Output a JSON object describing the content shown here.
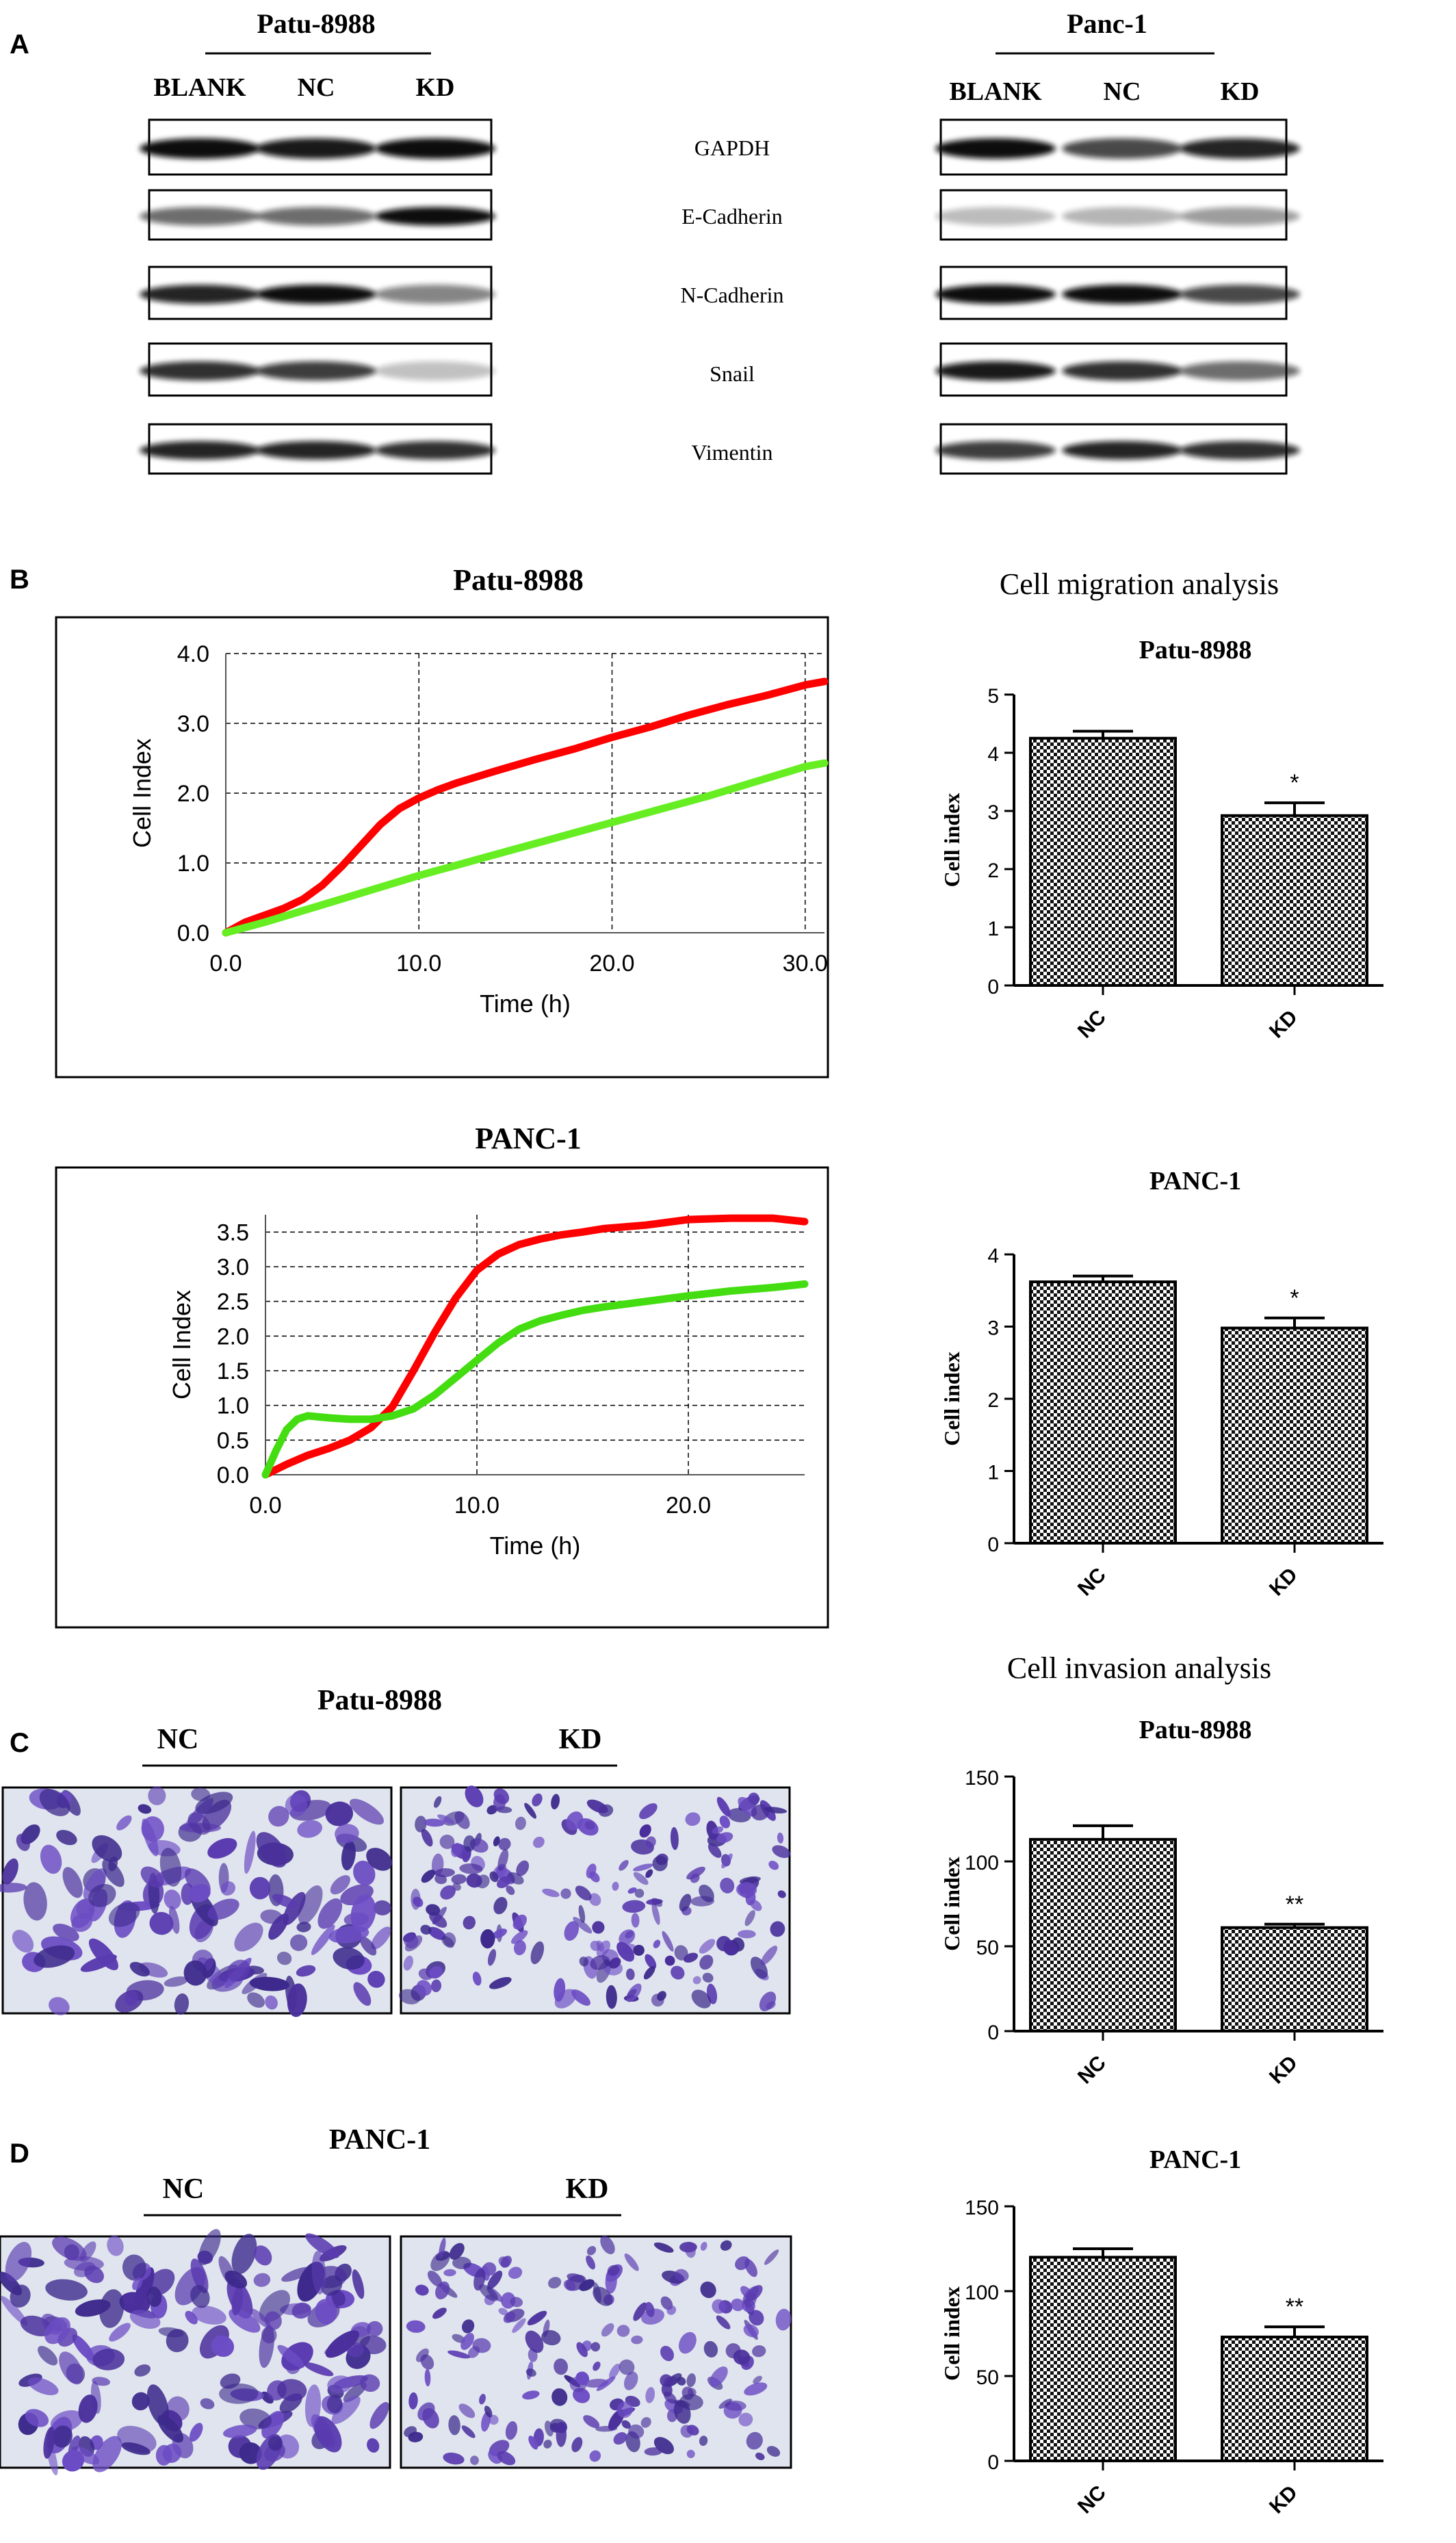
{
  "panels": {
    "A": "A",
    "B": "B",
    "C": "C",
    "D": "D"
  },
  "western_blot": {
    "cell_lines": [
      "Patu-8988",
      "Panc-1"
    ],
    "lanes": [
      "BLANK",
      "NC",
      "KD"
    ],
    "proteins": [
      "GAPDH",
      "E-Cadherin",
      "N-Cadherin",
      "Snail",
      "Vimentin"
    ],
    "band_intensity": {
      "Patu-8988": [
        [
          0.85,
          0.8,
          0.85
        ],
        [
          0.45,
          0.45,
          0.85
        ],
        [
          0.75,
          0.85,
          0.35
        ],
        [
          0.7,
          0.65,
          0.1
        ],
        [
          0.75,
          0.75,
          0.7
        ]
      ],
      "Panc-1": [
        [
          0.85,
          0.6,
          0.75
        ],
        [
          0.12,
          0.15,
          0.25
        ],
        [
          0.95,
          0.95,
          0.6
        ],
        [
          0.8,
          0.7,
          0.45
        ],
        [
          0.65,
          0.75,
          0.7
        ]
      ]
    },
    "band_color": "#111111"
  },
  "section_headings": {
    "migration": "Cell migration analysis",
    "invasion": "Cell invasion analysis"
  },
  "micrographs": {
    "C": {
      "title": "Patu-8988",
      "left": "NC",
      "right": "KD",
      "density": [
        130,
        200
      ]
    },
    "D": {
      "title": "PANC-1",
      "left": "NC",
      "right": "KD",
      "density": [
        150,
        190
      ]
    }
  },
  "chart_data": [
    {
      "type": "line",
      "title": "Patu-8988",
      "xlabel": "Time (h)",
      "ylabel": "Cell Index",
      "xlim": [
        0,
        31
      ],
      "ylim": [
        0,
        4
      ],
      "xticks": [
        0,
        10,
        20,
        30
      ],
      "xtick_labels": [
        "0.0",
        "10.0",
        "20.0",
        "30.0"
      ],
      "yticks": [
        0,
        1,
        2,
        3,
        4
      ],
      "ytick_labels": [
        "0.0",
        "1.0",
        "2.0",
        "3.0",
        "4.0"
      ],
      "grid": true,
      "series": [
        {
          "color": "#ff0000",
          "x": [
            0,
            1,
            2,
            3,
            4,
            5,
            6,
            7,
            8,
            9,
            10,
            11,
            12,
            14,
            16,
            18,
            20,
            22,
            24,
            26,
            28,
            30,
            31
          ],
          "y": [
            0,
            0.15,
            0.25,
            0.35,
            0.48,
            0.68,
            0.95,
            1.25,
            1.55,
            1.78,
            1.93,
            2.05,
            2.15,
            2.32,
            2.48,
            2.63,
            2.8,
            2.95,
            3.12,
            3.27,
            3.4,
            3.55,
            3.6
          ]
        },
        {
          "color": "#66ee22",
          "x": [
            0,
            2,
            5,
            10,
            15,
            20,
            25,
            30,
            31
          ],
          "y": [
            0,
            0.15,
            0.4,
            0.82,
            1.2,
            1.58,
            1.96,
            2.38,
            2.43
          ]
        }
      ]
    },
    {
      "type": "bar",
      "title": "Patu-8988",
      "ylabel": "Cell index",
      "categories": [
        "NC",
        "KD"
      ],
      "values": [
        4.25,
        2.92
      ],
      "errors": [
        0.12,
        0.22
      ],
      "significance": [
        "",
        "*"
      ],
      "ylim": [
        0,
        5
      ],
      "yticks": [
        0,
        1,
        2,
        3,
        4,
        5
      ],
      "ytick_labels": [
        "0",
        "1",
        "2",
        "3",
        "4",
        "5"
      ]
    },
    {
      "type": "line",
      "title": "PANC-1",
      "xlabel": "Time (h)",
      "ylabel": "Cell Index",
      "xlim": [
        0,
        25.5
      ],
      "ylim": [
        0,
        3.75
      ],
      "xticks": [
        0,
        10,
        20
      ],
      "xtick_labels": [
        "0.0",
        "10.0",
        "20.0"
      ],
      "yticks": [
        0,
        0.5,
        1,
        1.5,
        2,
        2.5,
        3,
        3.5
      ],
      "ytick_labels": [
        "0.0",
        "0.5",
        "1.0",
        "1.5",
        "2.0",
        "2.5",
        "3.0",
        "3.5"
      ],
      "grid": true,
      "series": [
        {
          "color": "#ff0000",
          "x": [
            0,
            1,
            2,
            3,
            4,
            5,
            6,
            7,
            8,
            9,
            10,
            11,
            12,
            13,
            14,
            15,
            16,
            18,
            20,
            22,
            24,
            25.5
          ],
          "y": [
            0,
            0.15,
            0.28,
            0.38,
            0.5,
            0.68,
            0.98,
            1.5,
            2.05,
            2.55,
            2.95,
            3.18,
            3.32,
            3.4,
            3.46,
            3.5,
            3.55,
            3.6,
            3.68,
            3.7,
            3.7,
            3.65
          ]
        },
        {
          "color": "#44dd11",
          "x": [
            0,
            0.5,
            1,
            1.5,
            2,
            3,
            4,
            5,
            6,
            7,
            8,
            9,
            10,
            11,
            12,
            13,
            14,
            15,
            16,
            18,
            20,
            22,
            24,
            25.5
          ],
          "y": [
            0,
            0.35,
            0.65,
            0.8,
            0.85,
            0.82,
            0.8,
            0.8,
            0.85,
            0.95,
            1.15,
            1.4,
            1.65,
            1.9,
            2.1,
            2.22,
            2.3,
            2.37,
            2.42,
            2.5,
            2.58,
            2.65,
            2.7,
            2.75
          ]
        }
      ]
    },
    {
      "type": "bar",
      "title": "PANC-1",
      "ylabel": "Cell index",
      "categories": [
        "NC",
        "KD"
      ],
      "values": [
        3.62,
        2.98
      ],
      "errors": [
        0.08,
        0.14
      ],
      "significance": [
        "",
        "*"
      ],
      "ylim": [
        0,
        4
      ],
      "yticks": [
        0,
        1,
        2,
        3,
        4
      ],
      "ytick_labels": [
        "0",
        "1",
        "2",
        "3",
        "4"
      ]
    },
    {
      "type": "bar",
      "title": "Patu-8988",
      "ylabel": "Cell index",
      "categories": [
        "NC",
        "KD"
      ],
      "values": [
        113,
        61
      ],
      "errors": [
        8,
        2
      ],
      "significance": [
        "",
        "**"
      ],
      "ylim": [
        0,
        150
      ],
      "yticks": [
        0,
        50,
        100,
        150
      ],
      "ytick_labels": [
        "0",
        "50",
        "100",
        "150"
      ]
    },
    {
      "type": "bar",
      "title": "PANC-1",
      "ylabel": "Cell index",
      "categories": [
        "NC",
        "KD"
      ],
      "values": [
        120,
        73
      ],
      "errors": [
        5,
        6
      ],
      "significance": [
        "",
        "**"
      ],
      "ylim": [
        0,
        150
      ],
      "yticks": [
        0,
        50,
        100,
        150
      ],
      "ytick_labels": [
        "0",
        "50",
        "100",
        "150"
      ]
    }
  ]
}
